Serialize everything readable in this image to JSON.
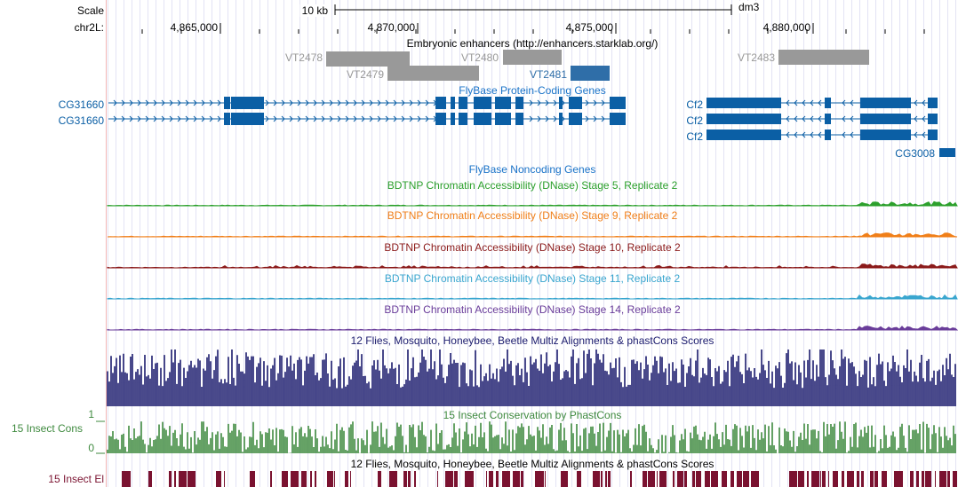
{
  "ruler": {
    "scale_label": "Scale",
    "scale_value": "10 kb",
    "assembly": "dm3",
    "chrom_label": "chr2L:",
    "ticks": [
      "4,865,000",
      "4,870,000",
      "4,875,000",
      "4,880,000"
    ]
  },
  "tracks": {
    "enhancers": {
      "title": "Embryonic enhancers (http://enhancers.starklab.org/)",
      "items": [
        "VT2478",
        "VT2479",
        "VT2480",
        "VT2481",
        "VT2483"
      ],
      "color": "#999999",
      "highlight_color": "#2f6ea8"
    },
    "flybase_genes": {
      "title": "FlyBase Protein-Coding Genes",
      "left_labels": [
        "CG31660",
        "CG31660"
      ],
      "right_labels": [
        "Cf2",
        "Cf2",
        "Cf2"
      ],
      "extra_label": "CG3008",
      "color": "#0b5fa5"
    },
    "noncoding": {
      "title": "FlyBase Noncoding Genes",
      "color": "#1a73c8"
    },
    "dnase": [
      {
        "title": "BDTNP Chromatin Accessibility (DNase) Stage 5, Replicate 2",
        "color": "#2ca02c"
      },
      {
        "title": "BDTNP Chromatin Accessibility (DNase) Stage 9, Replicate 2",
        "color": "#f07f19"
      },
      {
        "title": "BDTNP Chromatin Accessibility (DNase) Stage 10, Replicate 2",
        "color": "#8b1a1a"
      },
      {
        "title": "BDTNP Chromatin Accessibility (DNase) Stage 11, Replicate 2",
        "color": "#3aa6cf"
      },
      {
        "title": "BDTNP Chromatin Accessibility (DNase) Stage 14, Replicate 2",
        "color": "#6a3d9a"
      }
    ],
    "multiz": {
      "title": "12 Flies, Mosquito, Honeybee, Beetle Multiz Alignments & phastCons Scores",
      "color": "#1c1c6e"
    },
    "phastcons": {
      "title": "15 Insect Conservation by PhastCons",
      "side_label": "15 Insect Cons",
      "axis_max": "1",
      "axis_min": "0",
      "color": "#3f8a3f"
    },
    "elements": {
      "title": "12 Flies, Mosquito, Honeybee, Beetle Multiz Alignments & phastCons Scores",
      "side_label": "15 Insect El",
      "color": "#7a1230"
    }
  }
}
